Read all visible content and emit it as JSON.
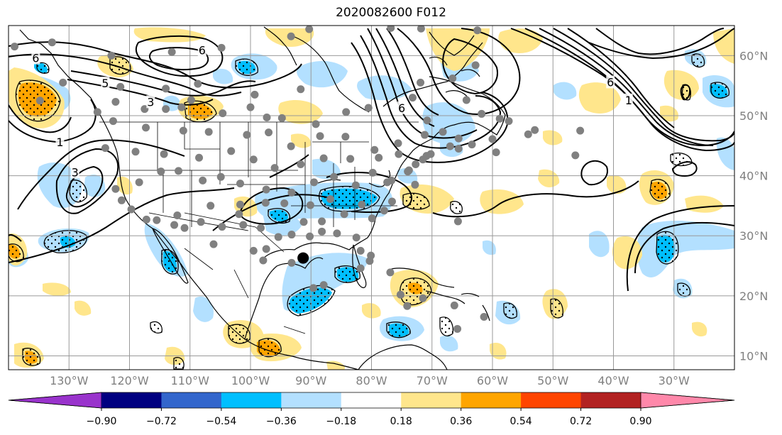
{
  "title": "2020082600 F012",
  "map": {
    "lon_range": [
      -140,
      -20
    ],
    "lat_range": [
      7.7,
      65
    ],
    "projection": "PlateCarree",
    "grid": true
  },
  "lat_ticks": [
    {
      "value": 60,
      "label": "60°N"
    },
    {
      "value": 50,
      "label": "50°N"
    },
    {
      "value": 40,
      "label": "40°N"
    },
    {
      "value": 30,
      "label": "30°N"
    },
    {
      "value": 20,
      "label": "20°N"
    },
    {
      "value": 10,
      "label": "10°N"
    }
  ],
  "lon_ticks": [
    {
      "value": -130,
      "label": "130°W"
    },
    {
      "value": -120,
      "label": "120°W"
    },
    {
      "value": -110,
      "label": "110°W"
    },
    {
      "value": -100,
      "label": "100°W"
    },
    {
      "value": -90,
      "label": "90°W"
    },
    {
      "value": -80,
      "label": "80°W"
    },
    {
      "value": -70,
      "label": "70°W"
    },
    {
      "value": -60,
      "label": "60°W"
    },
    {
      "value": -50,
      "label": "50°W"
    },
    {
      "value": -40,
      "label": "40°W"
    },
    {
      "value": -30,
      "label": "30°W"
    }
  ],
  "colorbar": {
    "colors": [
      "#9933cc",
      "#000080",
      "#3366cc",
      "#00bfff",
      "#b3e0ff",
      "#ffffff",
      "#ffe68c",
      "#ffa500",
      "#ff4500",
      "#b22222",
      "#ff88aa"
    ],
    "labels": [
      "−0.90",
      "−0.72",
      "−0.54",
      "−0.36",
      "−0.18",
      "0.18",
      "0.36",
      "0.54",
      "0.72",
      "0.90"
    ]
  },
  "contour_labels": [
    {
      "text": "6",
      "lon": -135.5,
      "lat": 59.5
    },
    {
      "text": "5",
      "lon": -124,
      "lat": 55.3
    },
    {
      "text": "3",
      "lon": -116.5,
      "lat": 52.2
    },
    {
      "text": "1",
      "lon": -131.5,
      "lat": 45.5
    },
    {
      "text": "3",
      "lon": -129,
      "lat": 40.5
    },
    {
      "text": "6",
      "lon": -108,
      "lat": 60.8
    },
    {
      "text": "6",
      "lon": -75,
      "lat": 51.2
    },
    {
      "text": "1",
      "lon": -37.5,
      "lat": 52.5
    },
    {
      "text": "6",
      "lon": -40.5,
      "lat": 55.5
    }
  ],
  "marker": {
    "lon": -91.3,
    "lat": 26.3,
    "color": "#000000"
  },
  "station_color": "#808080",
  "stations": [
    [
      -139,
      61.5
    ],
    [
      -132.8,
      62.2
    ],
    [
      -123,
      60
    ],
    [
      -113,
      60.6
    ],
    [
      -104.8,
      61.3
    ],
    [
      -90.3,
      64.4
    ],
    [
      -93.3,
      63.2
    ],
    [
      -76.8,
      64.6
    ],
    [
      -71.8,
      64.5
    ],
    [
      -62.5,
      64.2
    ],
    [
      -131,
      55.5
    ],
    [
      -121.5,
      54.8
    ],
    [
      -114,
      54.5
    ],
    [
      -108.7,
      55.3
    ],
    [
      -99.3,
      53.5
    ],
    [
      -91.7,
      54.4
    ],
    [
      -84.2,
      50.6
    ],
    [
      -71.9,
      55.5
    ],
    [
      -66.6,
      56.2
    ],
    [
      -62.8,
      58.4
    ],
    [
      -134.8,
      52.5
    ],
    [
      -125.3,
      50.6
    ],
    [
      -122.3,
      52.3
    ],
    [
      -117.5,
      51.1
    ],
    [
      -114,
      51.1
    ],
    [
      -111.4,
      51.4
    ],
    [
      -109.8,
      52.6
    ],
    [
      -104.6,
      50.4
    ],
    [
      -100,
      51.4
    ],
    [
      -97.3,
      49.7
    ],
    [
      -94.8,
      49.6
    ],
    [
      -89.2,
      48.6
    ],
    [
      -80.5,
      51.3
    ],
    [
      -73.2,
      53
    ],
    [
      -70.8,
      49.2
    ],
    [
      -64.3,
      52.6
    ],
    [
      -61.8,
      50.3
    ],
    [
      -57.3,
      49.1
    ],
    [
      -53,
      47.6
    ],
    [
      -45.5,
      47.5
    ],
    [
      -122.7,
      49.1
    ],
    [
      -117.3,
      48
    ],
    [
      -111.1,
      47.5
    ],
    [
      -106.9,
      47.3
    ],
    [
      -100.6,
      46.8
    ],
    [
      -97,
      47.2
    ],
    [
      -93.3,
      44.9
    ],
    [
      -88.5,
      46.6
    ],
    [
      -84.3,
      46.5
    ],
    [
      -79.5,
      44.3
    ],
    [
      -75.6,
      45.4
    ],
    [
      -71.2,
      46.8
    ],
    [
      -68.2,
      47.3
    ],
    [
      -65.6,
      46.2
    ],
    [
      -63.4,
      45.2
    ],
    [
      -60,
      46.1
    ],
    [
      -58.8,
      49.5
    ],
    [
      -54.1,
      46.9
    ],
    [
      -124,
      44.6
    ],
    [
      -119,
      44
    ],
    [
      -114.3,
      43.6
    ],
    [
      -108.5,
      43
    ],
    [
      -103.2,
      44.1
    ],
    [
      -99.5,
      42.7
    ],
    [
      -96,
      41.3
    ],
    [
      -91.7,
      41.9
    ],
    [
      -87.9,
      42.9
    ],
    [
      -83.5,
      42.8
    ],
    [
      -78.8,
      43
    ],
    [
      -75.5,
      43.6
    ],
    [
      -71.5,
      42.7
    ],
    [
      -70.2,
      43.6
    ],
    [
      -67,
      44.9
    ],
    [
      -65.6,
      44.5
    ],
    [
      -70.9,
      43.3
    ],
    [
      -122.3,
      37.8
    ],
    [
      -118.4,
      38.9
    ],
    [
      -114.8,
      40.7
    ],
    [
      -111.9,
      40.8
    ],
    [
      -107.9,
      39.2
    ],
    [
      -104.9,
      39.8
    ],
    [
      -101.7,
      38.7
    ],
    [
      -97.4,
      37.7
    ],
    [
      -93.2,
      37.2
    ],
    [
      -89.5,
      38.9
    ],
    [
      -86.2,
      39.8
    ],
    [
      -82.6,
      38.4
    ],
    [
      -79.8,
      40.5
    ],
    [
      -77.4,
      38.9
    ],
    [
      -74,
      40.7
    ],
    [
      -72.7,
      41.9
    ],
    [
      -76.7,
      39.2
    ],
    [
      -73.8,
      40.9
    ],
    [
      -119.7,
      34.4
    ],
    [
      -117.2,
      32.7
    ],
    [
      -112.1,
      33.4
    ],
    [
      -106.6,
      35
    ],
    [
      -101.7,
      35.2
    ],
    [
      -97.5,
      35.5
    ],
    [
      -94.4,
      35.4
    ],
    [
      -90.1,
      35.1
    ],
    [
      -86.8,
      36.1
    ],
    [
      -84.5,
      33.6
    ],
    [
      -81.6,
      35.2
    ],
    [
      -77.9,
      34.2
    ],
    [
      -76.6,
      35.7
    ],
    [
      -79.9,
      32.9
    ],
    [
      -101.9,
      33.6
    ],
    [
      -98.3,
      31.3
    ],
    [
      -95.4,
      29.8
    ],
    [
      -93.2,
      30.2
    ],
    [
      -90.2,
      29.9
    ],
    [
      -88.2,
      30.7
    ],
    [
      -85.7,
      30.4
    ],
    [
      -82.5,
      29.7
    ],
    [
      -80.1,
      26.7
    ],
    [
      -81.8,
      27.5
    ],
    [
      -97.4,
      27.8
    ],
    [
      -99.5,
      27.5
    ],
    [
      -106.1,
      28.6
    ],
    [
      -110.9,
      31.3
    ],
    [
      -115.5,
      32.6
    ],
    [
      -121.3,
      35.9
    ],
    [
      -91.2,
      32.3
    ],
    [
      -88.2,
      32.4
    ],
    [
      -101.2,
      31.8
    ],
    [
      -108.2,
      32.3
    ],
    [
      -112.6,
      31.8
    ],
    [
      -104.7,
      31.5
    ],
    [
      -93.2,
      25.5
    ],
    [
      -97.9,
      25.9
    ],
    [
      -89.6,
      21.3
    ],
    [
      -87.9,
      21.8
    ],
    [
      -81.8,
      24.6
    ],
    [
      -80.3,
      25.8
    ],
    [
      -76.9,
      23.9
    ],
    [
      -75.2,
      20.2
    ],
    [
      -74.1,
      18.3
    ],
    [
      -71.5,
      19.6
    ],
    [
      -66.3,
      18.4
    ],
    [
      -72.8,
      38.5
    ],
    [
      -46.3,
      43.4
    ],
    [
      -59.4,
      43.9
    ],
    [
      -65.7,
      32.4
    ],
    [
      -65.8,
      14.5
    ],
    [
      -61.4,
      16.5
    ]
  ]
}
